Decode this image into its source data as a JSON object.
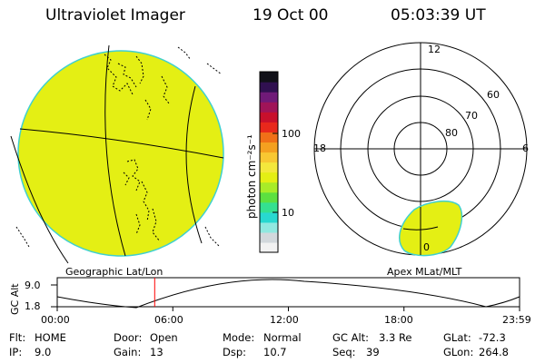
{
  "header": {
    "title": "Ultraviolet Imager",
    "date": "19 Oct 00",
    "time": "05:03:39 UT"
  },
  "colors": {
    "image_fill": "#e4ef14",
    "image_edge": "#3fd0d0",
    "ink": "#000000",
    "marker": "#ff0000"
  },
  "colorbar": {
    "unit_label": "photon cm⁻²s⁻¹",
    "tick_labels": [
      "100",
      "10"
    ],
    "tick_values": [
      100,
      10
    ],
    "scale": "log"
  },
  "left_panel": {
    "label": "Geographic Lat/Lon"
  },
  "right_panel": {
    "label": "Apex MLat/MLT",
    "mlt_labels": [
      "12",
      "18",
      "6",
      "0"
    ],
    "mlat_labels": [
      "60",
      "70",
      "80"
    ]
  },
  "altitude_plot": {
    "ylabel": "GC Alt",
    "y_ticks": [
      "9.0",
      "1.8"
    ],
    "x_ticks": [
      "00:00",
      "06:00",
      "12:00",
      "18:00",
      "23:59"
    ],
    "current_time_fraction": 0.2108
  },
  "info": {
    "row1": [
      {
        "key": "Flt:",
        "val": "HOME"
      },
      {
        "key": "Door:",
        "val": "Open"
      },
      {
        "key": "Mode:",
        "val": "Normal"
      },
      {
        "key": "GC Alt:",
        "val": "3.3 Re"
      },
      {
        "key": "GLat:",
        "val": "-72.3"
      }
    ],
    "row2": [
      {
        "key": "IP:",
        "val": "9.0"
      },
      {
        "key": "Gain:",
        "val": "13"
      },
      {
        "key": "Dsp:",
        "val": "10.7"
      },
      {
        "key": "Seq:",
        "val": "39"
      },
      {
        "key": "GLon:",
        "val": "264.8"
      }
    ]
  }
}
